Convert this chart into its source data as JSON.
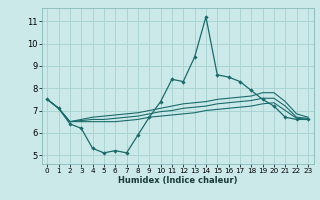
{
  "xlabel": "Humidex (Indice chaleur)",
  "bg_color": "#cce9e9",
  "grid_color": "#aad4d4",
  "line_color": "#1a6b6b",
  "x_ticks": [
    0,
    1,
    2,
    3,
    4,
    5,
    6,
    7,
    8,
    9,
    10,
    11,
    12,
    13,
    14,
    15,
    16,
    17,
    18,
    19,
    20,
    21,
    22,
    23
  ],
  "y_ticks": [
    5,
    6,
    7,
    8,
    9,
    10,
    11
  ],
  "ylim": [
    4.6,
    11.6
  ],
  "xlim": [
    -0.5,
    23.5
  ],
  "series_main": {
    "x": [
      0,
      1,
      2,
      3,
      4,
      5,
      6,
      7,
      8,
      9,
      10,
      11,
      12,
      13,
      14,
      15,
      16,
      17,
      18,
      19,
      20,
      21,
      22,
      23
    ],
    "y": [
      7.5,
      7.1,
      6.4,
      6.2,
      5.3,
      5.1,
      5.2,
      5.1,
      5.9,
      6.7,
      7.4,
      8.4,
      8.3,
      9.4,
      11.2,
      8.6,
      8.5,
      8.3,
      7.9,
      7.5,
      7.2,
      6.7,
      6.6,
      6.6
    ]
  },
  "series_smooth": [
    {
      "x": [
        0,
        1,
        2,
        3,
        4,
        5,
        6,
        7,
        8,
        9,
        10,
        11,
        12,
        13,
        14,
        15,
        16,
        17,
        18,
        19,
        20,
        21,
        22,
        23
      ],
      "y": [
        7.5,
        7.1,
        6.5,
        6.5,
        6.5,
        6.5,
        6.5,
        6.55,
        6.6,
        6.7,
        6.75,
        6.8,
        6.85,
        6.9,
        7.0,
        7.05,
        7.1,
        7.15,
        7.2,
        7.3,
        7.35,
        7.0,
        6.65,
        6.6
      ]
    },
    {
      "x": [
        0,
        1,
        2,
        3,
        4,
        5,
        6,
        7,
        8,
        9,
        10,
        11,
        12,
        13,
        14,
        15,
        16,
        17,
        18,
        19,
        20,
        21,
        22,
        23
      ],
      "y": [
        7.5,
        7.1,
        6.5,
        6.55,
        6.6,
        6.6,
        6.65,
        6.7,
        6.75,
        6.85,
        6.95,
        7.0,
        7.1,
        7.15,
        7.2,
        7.3,
        7.35,
        7.4,
        7.45,
        7.55,
        7.55,
        7.2,
        6.7,
        6.65
      ]
    },
    {
      "x": [
        0,
        1,
        2,
        3,
        4,
        5,
        6,
        7,
        8,
        9,
        10,
        11,
        12,
        13,
        14,
        15,
        16,
        17,
        18,
        19,
        20,
        21,
        22,
        23
      ],
      "y": [
        7.5,
        7.1,
        6.5,
        6.6,
        6.7,
        6.75,
        6.8,
        6.85,
        6.9,
        7.0,
        7.1,
        7.2,
        7.3,
        7.35,
        7.4,
        7.5,
        7.55,
        7.6,
        7.65,
        7.8,
        7.8,
        7.4,
        6.85,
        6.7
      ]
    }
  ]
}
